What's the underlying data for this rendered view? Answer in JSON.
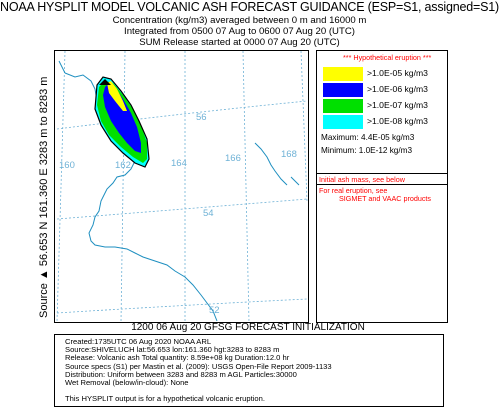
{
  "header": {
    "title": "NOAA HYSPLIT MODEL VOLCANIC ASH FORECAST GUIDANCE (ESP=S1, assigned=S1)",
    "line1": "Concentration  (kg/m3) averaged between     0 m and 16000 m",
    "line2": "Integrated from 0500 07 Aug to 0600 07 Aug 20 (UTC)",
    "line3": "SUM  Release started at 0000 07 Aug 20 (UTC)"
  },
  "side_label": "Source ▲ 56.653  N 161.360  E    3283 m to 8283 m",
  "map": {
    "lon_labels": [
      "160",
      "162",
      "164",
      "166",
      "168"
    ],
    "lat_labels": [
      "56",
      "54",
      "52"
    ],
    "colors": {
      "coast": "#1e8fc0",
      "grid": "#6fb2d6",
      "source": "#000000"
    }
  },
  "legend": {
    "hypothetical": "*** Hypothetical eruption ***",
    "items": [
      {
        "label": ">1.0E-05 kg/m3",
        "color": "#ffff00"
      },
      {
        "label": ">1.0E-06 kg/m3",
        "color": "#0000ff"
      },
      {
        "label": ">1.0E-07 kg/m3",
        "color": "#00e000"
      },
      {
        "label": ">1.0E-08 kg/m3",
        "color": "#00ffff"
      }
    ],
    "maximum": "Maximum: 4.4E-05 kg/m3",
    "minimum": "Minimum:  1.0E-12 kg/m3",
    "note1": "Initial ash mass, see below",
    "note2": "For real eruption, see",
    "note3": "SIGMET and VAAC products"
  },
  "forecast_init": "1200 06 Aug 20 GFSG FORECAST INITIALIZATION",
  "info": {
    "lines": [
      "Created:1735UTC 06 Aug 2020 NOAA ARL",
      "Source:SHIVELUCH  lat:56.653  lon:161.360  hgt:3283 to 8283 m",
      "Release: Volcanic ash   Total quantity: 8.59e+08 kg  Duration:12.0 hr",
      "Source specs (S1) per Mastin et al. (2009): USGS Open-File Report 2009-1133",
      "Distribution: Uniform between 3283 and 8283 m AGL   Particles:30000",
      "Wet Removal (below/in-cloud): None",
      "",
      "This HYSPLIT output is for a hypothetical volcanic eruption."
    ]
  }
}
